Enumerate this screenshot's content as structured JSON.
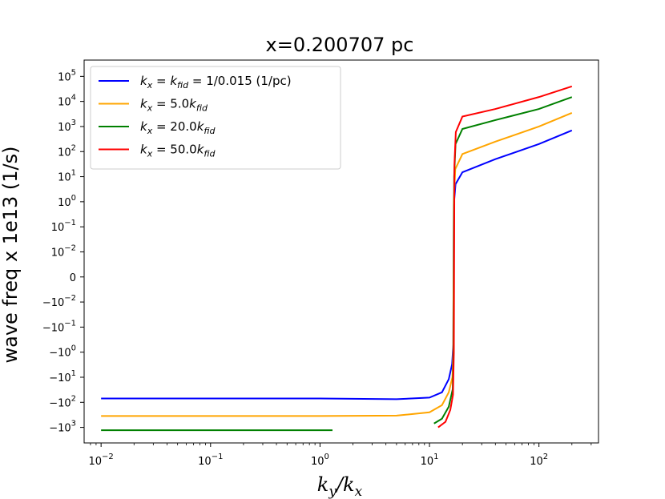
{
  "chart_data": {
    "type": "line",
    "title": "x=0.200707 pc",
    "xlabel": "k_y/k_x",
    "ylabel": "wave freq x 1e13 (1/s)",
    "xscale": "log",
    "yscale": "symlog",
    "xlim": [
      0.007,
      350
    ],
    "x_ticks": [
      {
        "value": 0.01,
        "base": "10",
        "exp": "−2"
      },
      {
        "value": 0.1,
        "base": "10",
        "exp": "−1"
      },
      {
        "value": 1,
        "base": "10",
        "exp": "0"
      },
      {
        "value": 10,
        "base": "10",
        "exp": "1"
      },
      {
        "value": 100,
        "base": "10",
        "exp": "2"
      }
    ],
    "y_ticks": [
      {
        "value": 100000,
        "base": "10",
        "exp": "5"
      },
      {
        "value": 10000,
        "base": "10",
        "exp": "4"
      },
      {
        "value": 1000,
        "base": "10",
        "exp": "3"
      },
      {
        "value": 100,
        "base": "10",
        "exp": "2"
      },
      {
        "value": 10,
        "base": "10",
        "exp": "1"
      },
      {
        "value": 1,
        "base": "10",
        "exp": "0"
      },
      {
        "value": 0.1,
        "base": "10",
        "exp": "−1"
      },
      {
        "value": 0.01,
        "base": "10",
        "exp": "−2"
      },
      {
        "value": 0,
        "base": "0",
        "exp": ""
      },
      {
        "value": -0.01,
        "base": "−10",
        "exp": "−2"
      },
      {
        "value": -0.1,
        "base": "−10",
        "exp": "−1"
      },
      {
        "value": -1,
        "base": "−10",
        "exp": "0"
      },
      {
        "value": -10,
        "base": "−10",
        "exp": "1"
      },
      {
        "value": -100,
        "base": "−10",
        "exp": "2"
      },
      {
        "value": -1000,
        "base": "−10",
        "exp": "3"
      }
    ],
    "legend_position": "top-left",
    "series": [
      {
        "name": "k_x = k_fid = 1/0.015 (1/pc)",
        "legend_parts": [
          [
            "k",
            "x",
            " = "
          ],
          [
            "k",
            "fid",
            " = 1/0.015 (1/pc)"
          ]
        ],
        "color": "#0000ff",
        "segments": [
          [
            [
              0.01,
              -70
            ],
            [
              1,
              -70
            ],
            [
              5,
              -75
            ],
            [
              10,
              -65
            ],
            [
              13,
              -40
            ],
            [
              15,
              -12
            ],
            [
              16.1,
              -3
            ],
            [
              16.5,
              -0.5
            ],
            [
              16.7,
              0.8
            ],
            [
              17.3,
              5
            ],
            [
              20,
              15
            ],
            [
              40,
              50
            ],
            [
              100,
              200
            ],
            [
              200,
              700
            ]
          ]
        ]
      },
      {
        "name": "k_x = 5.0k_fid",
        "legend_parts": [
          [
            "k",
            "x",
            " = 5.0"
          ],
          [
            "k",
            "fid",
            ""
          ]
        ],
        "color": "#ffa500",
        "segments": [
          [
            [
              0.01,
              -350
            ],
            [
              1,
              -350
            ],
            [
              5,
              -340
            ],
            [
              10,
              -250
            ],
            [
              13,
              -130
            ],
            [
              15,
              -40
            ],
            [
              16.2,
              -10
            ],
            [
              16.5,
              -1
            ],
            [
              16.7,
              1
            ],
            [
              17.2,
              20
            ],
            [
              20,
              80
            ],
            [
              40,
              250
            ],
            [
              100,
              1000
            ],
            [
              200,
              3500
            ]
          ]
        ]
      },
      {
        "name": "k_x = 20.0k_fid",
        "legend_parts": [
          [
            "k",
            "x",
            " = 20.0"
          ],
          [
            "k",
            "fid",
            ""
          ]
        ],
        "color": "#008000",
        "segments": [
          [
            [
              0.01,
              -1300
            ],
            [
              1.3,
              -1300
            ]
          ],
          [
            [
              11,
              -700
            ],
            [
              13,
              -450
            ],
            [
              15,
              -150
            ],
            [
              16.3,
              -30
            ],
            [
              16.6,
              -1
            ],
            [
              16.8,
              10
            ],
            [
              17.3,
              200
            ],
            [
              20,
              800
            ],
            [
              40,
              1800
            ],
            [
              100,
              5000
            ],
            [
              200,
              15000
            ]
          ]
        ]
      },
      {
        "name": "k_x = 50.0k_fid",
        "legend_parts": [
          [
            "k",
            "x",
            " = 50.0"
          ],
          [
            "k",
            "fid",
            ""
          ]
        ],
        "color": "#ff0000",
        "segments": [
          [
            [
              12,
              -1000
            ],
            [
              14,
              -600
            ],
            [
              15.5,
              -200
            ],
            [
              16.4,
              -50
            ],
            [
              16.7,
              -1
            ],
            [
              16.9,
              30
            ],
            [
              17.4,
              600
            ],
            [
              20,
              2500
            ],
            [
              40,
              5000
            ],
            [
              100,
              15000
            ],
            [
              200,
              40000
            ]
          ]
        ]
      }
    ]
  }
}
